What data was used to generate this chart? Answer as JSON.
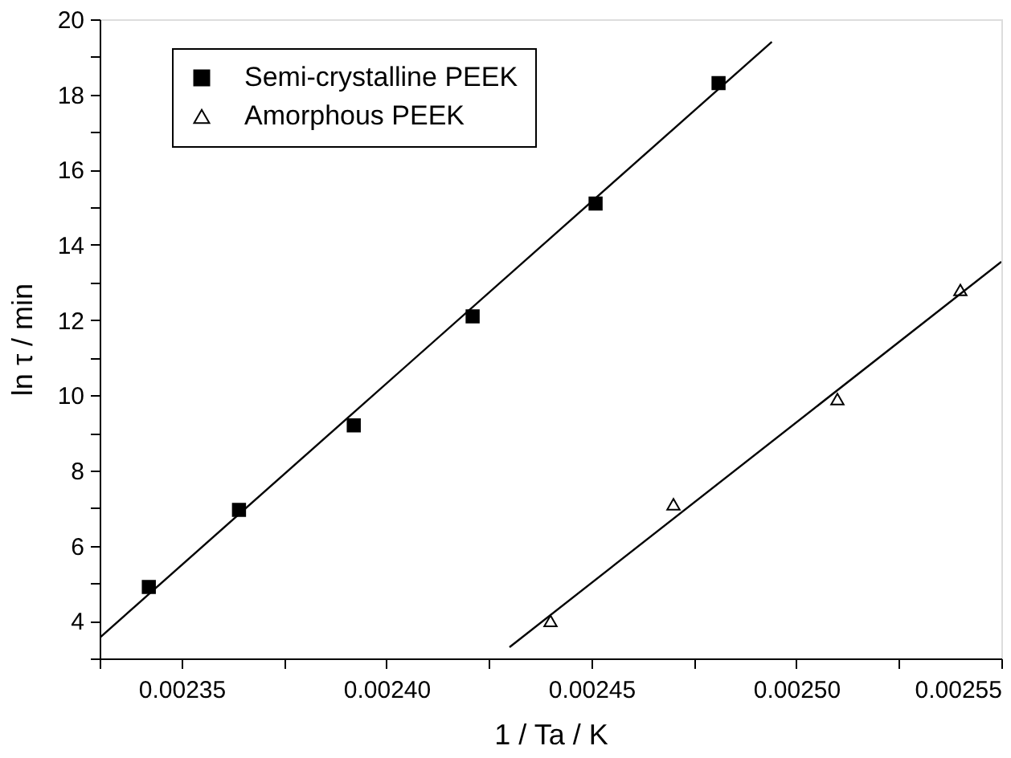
{
  "chart_data": {
    "type": "scatter",
    "xlabel": "1 / Ta / K",
    "ylabel": "ln τ / min",
    "xlim": [
      0.00233,
      0.00255
    ],
    "ylim": [
      3,
      20
    ],
    "xticks": [
      {
        "value": 0.00233,
        "label": null
      },
      0.00235,
      {
        "value": 0.002375,
        "label": null
      },
      {
        "value": 0.0024,
        "label": "0.00240"
      },
      {
        "value": 0.002425,
        "label": null
      },
      0.00245,
      {
        "value": 0.002475,
        "label": null
      },
      {
        "value": 0.0025,
        "label": "0.00250"
      },
      {
        "value": 0.002525,
        "label": null
      },
      0.00255
    ],
    "yticks": [
      {
        "value": 3,
        "label": null
      },
      4,
      {
        "value": 5,
        "label": null
      },
      6,
      {
        "value": 7,
        "label": null
      },
      8,
      {
        "value": 9,
        "label": null
      },
      10,
      {
        "value": 11,
        "label": null
      },
      12,
      {
        "value": 13,
        "label": null
      },
      14,
      {
        "value": 15,
        "label": null
      },
      16,
      {
        "value": 17,
        "label": null
      },
      18,
      {
        "value": 19,
        "label": null
      },
      20
    ],
    "legend": "top left",
    "grid": false,
    "series": [
      {
        "name": "Semi-crystalline PEEK",
        "color": "#000000",
        "marker": "square",
        "x": [
          0.002342,
          0.002364,
          0.002392,
          0.002421,
          0.002451,
          0.002481
        ],
        "values": [
          4.9,
          6.95,
          9.2,
          12.1,
          15.1,
          18.3
        ]
      },
      {
        "name": "Amorphous PEEK",
        "color": "#000000",
        "marker": "triangle",
        "x": [
          0.00244,
          0.00247,
          0.00251,
          0.00254
        ],
        "values": [
          4.0,
          7.1,
          9.9,
          12.8
        ]
      },
      {
        "type": "line",
        "color": "#000000",
        "x": [
          0.00233,
          0.002494
        ],
        "values": [
          3.55,
          19.4
        ]
      },
      {
        "type": "line",
        "color": "#000000",
        "x": [
          0.00243,
          0.00255
        ],
        "values": [
          3.3,
          13.55
        ]
      }
    ]
  }
}
